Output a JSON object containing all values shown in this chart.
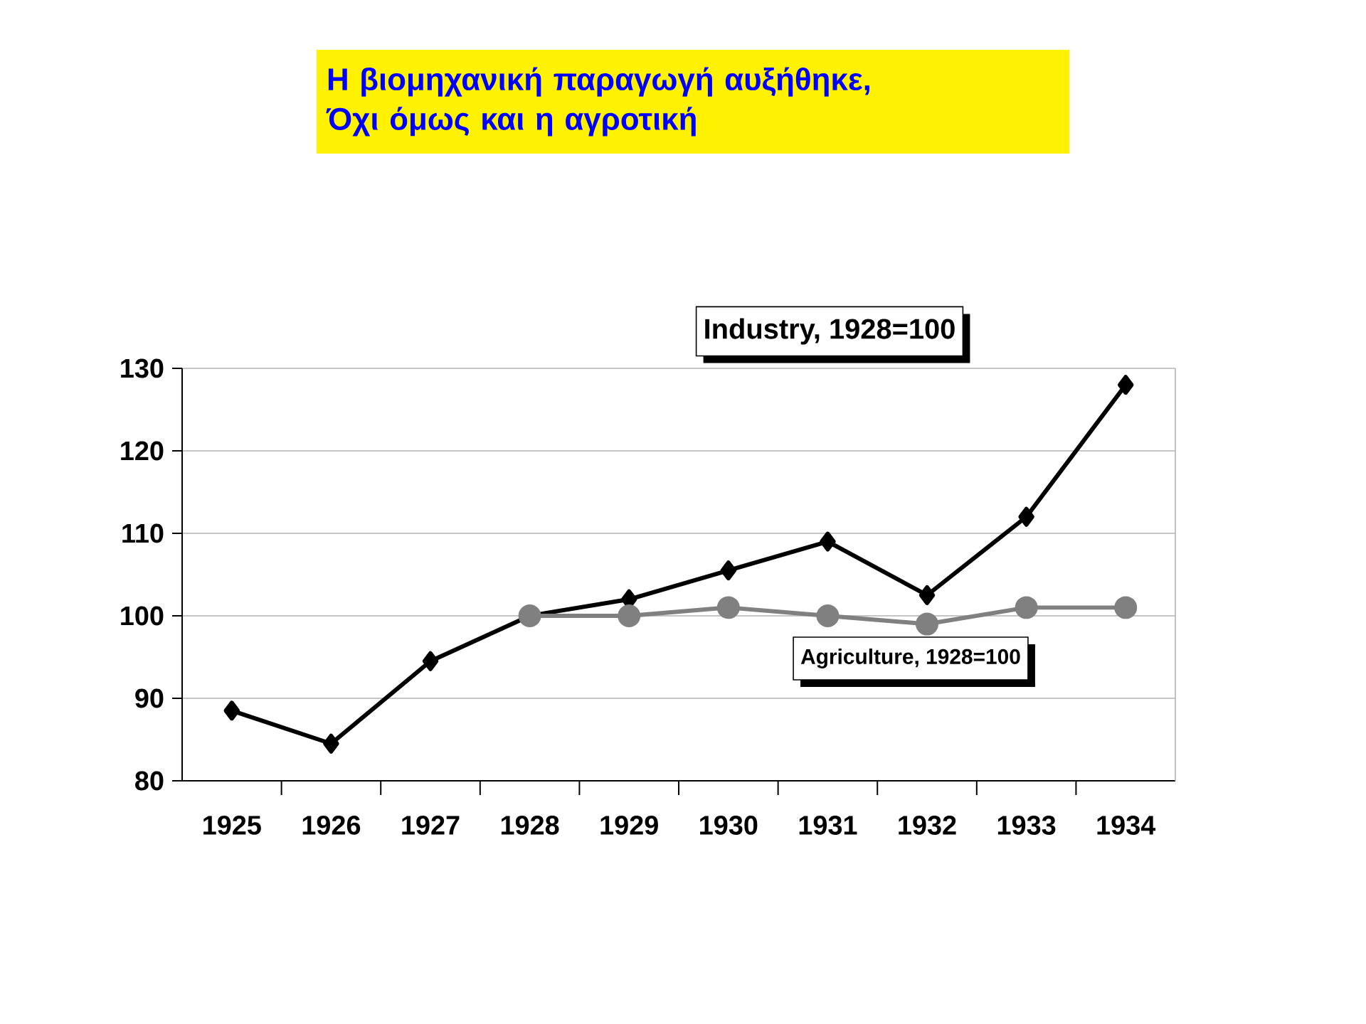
{
  "chart_data": {
    "type": "line",
    "title": "Η βιομηχανική παραγωγή αυξήθηκε,",
    "subtitle": "Όχι όμως και η αγροτική",
    "categories": [
      "1925",
      "1926",
      "1927",
      "1928",
      "1929",
      "1930",
      "1931",
      "1932",
      "1933",
      "1934"
    ],
    "series": [
      {
        "name": "Industry, 1928=100",
        "color": "#000000",
        "marker": "diamond",
        "values": [
          88.5,
          84.5,
          94.5,
          100,
          102,
          105.5,
          109,
          102.5,
          112,
          128
        ]
      },
      {
        "name": "Agriculture, 1928=100",
        "color": "#808080",
        "marker": "circle",
        "values": [
          null,
          null,
          null,
          100,
          100,
          101,
          100,
          99,
          101,
          101
        ]
      }
    ],
    "ylim": [
      80,
      130
    ],
    "yticks": [
      80,
      90,
      100,
      110,
      120,
      130
    ],
    "grid": "y",
    "legend": false
  }
}
